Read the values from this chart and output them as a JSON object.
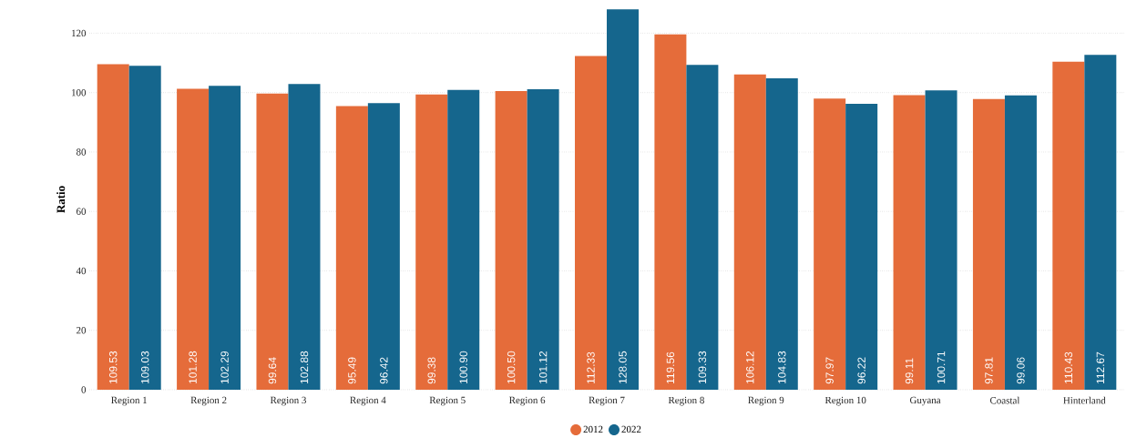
{
  "chart_data": {
    "type": "bar",
    "ylabel": "Ratio",
    "categories": [
      "Region 1",
      "Region 2",
      "Region 3",
      "Region 4",
      "Region 5",
      "Region 6",
      "Region 7",
      "Region 8",
      "Region 9",
      "Region 10",
      "Guyana",
      "Coastal",
      "Hinterland"
    ],
    "series": [
      {
        "name": "2012",
        "color": "#e56c3a",
        "values": [
          109.53,
          101.28,
          99.64,
          95.49,
          99.38,
          100.5,
          112.33,
          119.56,
          106.12,
          97.97,
          99.11,
          97.81,
          110.43
        ],
        "value_labels": [
          "109.53",
          "101.28",
          "99.64",
          "95.49",
          "99.38",
          "100.50",
          "112.33",
          "119.56",
          "106.12",
          "97.97",
          "99.11",
          "97.81",
          "110.43"
        ]
      },
      {
        "name": "2022",
        "color": "#15668d",
        "values": [
          109.03,
          102.29,
          102.88,
          96.42,
          100.9,
          101.12,
          128.05,
          109.33,
          104.83,
          96.22,
          100.71,
          99.06,
          112.67
        ],
        "value_labels": [
          "109.03",
          "102.29",
          "102.88",
          "96.42",
          "100.90",
          "101.12",
          "128.05",
          "109.33",
          "104.83",
          "96.22",
          "100.71",
          "99.06",
          "112.67"
        ]
      }
    ],
    "ylim": [
      0,
      128.1
    ],
    "yticks": [
      0,
      20,
      40,
      60,
      80,
      100,
      120
    ],
    "grid": "y",
    "legend": "bottom"
  }
}
